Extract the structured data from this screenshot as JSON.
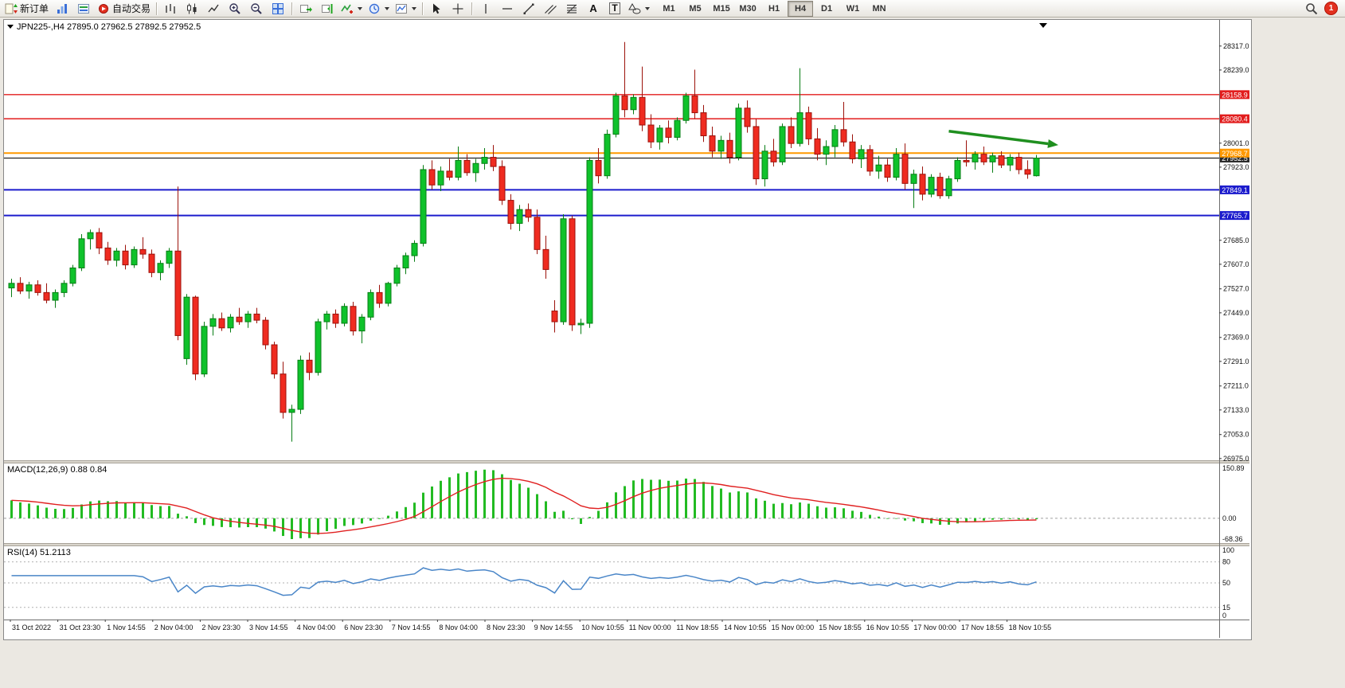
{
  "toolbar": {
    "new_order_label": "新订单",
    "auto_trading_label": "自动交易",
    "text_tool_label": "A",
    "label_tool_label": "T",
    "timeframes": [
      "M1",
      "M5",
      "M15",
      "M30",
      "H1",
      "H4",
      "D1",
      "W1",
      "MN"
    ],
    "active_timeframe": "H4",
    "notification_count": "1"
  },
  "chart_data": {
    "type": "candlestick",
    "symbol": "JPN225-",
    "period": "H4",
    "title": "JPN225-,H4",
    "ohlc_text": "27895.0 27962.5 27892.5 27952.5",
    "open": 27895.0,
    "high": 27962.5,
    "low": 27892.5,
    "close": 27952.5,
    "up_color": "#0fc22b",
    "up_edge": "#077d14",
    "down_color": "#ef2b20",
    "down_edge": "#9c120b",
    "price_axis_labels": [
      28317.0,
      28239.0,
      28001.0,
      27923.0,
      27685.0,
      27607.0,
      27527.0,
      27449.0,
      27369.0,
      27291.0,
      27211.0,
      27133.0,
      27053.0,
      26975.0
    ],
    "h_lines": [
      {
        "price": 28158.9,
        "color": "#e21d1d",
        "label": "28158.9",
        "width": 1.4
      },
      {
        "price": 28080.4,
        "color": "#e21d1d",
        "label": "28080.4",
        "width": 1.4
      },
      {
        "price": 27952.5,
        "color": "#000000",
        "label": "27952.5",
        "width": 1
      },
      {
        "price": 27968.7,
        "color": "#ff9900",
        "label": "27968.7",
        "width": 2
      },
      {
        "price": 27849.1,
        "color": "#1c1ccd",
        "label": "27849.1",
        "width": 2
      },
      {
        "price": 27765.7,
        "color": "#1c1ccd",
        "label": "27765.7",
        "width": 2
      }
    ],
    "trend_arrow": {
      "from_index": 107,
      "from_price": 28040,
      "to_index": 119.5,
      "to_price": 27995,
      "color": "#1f8f1f"
    },
    "candles": [
      [
        27530,
        27560,
        27500,
        27545
      ],
      [
        27545,
        27565,
        27510,
        27520
      ],
      [
        27520,
        27550,
        27495,
        27540
      ],
      [
        27540,
        27555,
        27505,
        27515
      ],
      [
        27515,
        27545,
        27480,
        27490
      ],
      [
        27490,
        27525,
        27465,
        27515
      ],
      [
        27515,
        27555,
        27500,
        27545
      ],
      [
        27545,
        27605,
        27535,
        27595
      ],
      [
        27595,
        27705,
        27585,
        27690
      ],
      [
        27690,
        27720,
        27655,
        27710
      ],
      [
        27710,
        27725,
        27640,
        27660
      ],
      [
        27660,
        27680,
        27605,
        27620
      ],
      [
        27620,
        27660,
        27600,
        27650
      ],
      [
        27650,
        27670,
        27590,
        27605
      ],
      [
        27605,
        27665,
        27595,
        27655
      ],
      [
        27655,
        27695,
        27625,
        27640
      ],
      [
        27640,
        27655,
        27565,
        27580
      ],
      [
        27580,
        27620,
        27555,
        27610
      ],
      [
        27610,
        27660,
        27595,
        27650
      ],
      [
        27650,
        27860,
        27360,
        27375
      ],
      [
        27300,
        27510,
        27280,
        27500
      ],
      [
        27500,
        27505,
        27230,
        27250
      ],
      [
        27250,
        27420,
        27240,
        27405
      ],
      [
        27405,
        27445,
        27375,
        27430
      ],
      [
        27430,
        27450,
        27390,
        27400
      ],
      [
        27400,
        27445,
        27385,
        27435
      ],
      [
        27435,
        27465,
        27410,
        27420
      ],
      [
        27420,
        27455,
        27400,
        27445
      ],
      [
        27445,
        27465,
        27415,
        27425
      ],
      [
        27425,
        27435,
        27330,
        27345
      ],
      [
        27345,
        27355,
        27235,
        27250
      ],
      [
        27250,
        27290,
        27105,
        27125
      ],
      [
        27125,
        27150,
        27030,
        27135
      ],
      [
        27135,
        27310,
        27120,
        27295
      ],
      [
        27295,
        27320,
        27230,
        27255
      ],
      [
        27255,
        27430,
        27245,
        27420
      ],
      [
        27420,
        27455,
        27395,
        27445
      ],
      [
        27445,
        27460,
        27400,
        27415
      ],
      [
        27415,
        27480,
        27405,
        27470
      ],
      [
        27470,
        27485,
        27375,
        27390
      ],
      [
        27390,
        27445,
        27350,
        27435
      ],
      [
        27435,
        27525,
        27425,
        27515
      ],
      [
        27515,
        27540,
        27465,
        27480
      ],
      [
        27480,
        27550,
        27470,
        27545
      ],
      [
        27545,
        27605,
        27535,
        27595
      ],
      [
        27595,
        27645,
        27575,
        27635
      ],
      [
        27635,
        27685,
        27615,
        27675
      ],
      [
        27675,
        27930,
        27665,
        27915
      ],
      [
        27915,
        27945,
        27850,
        27865
      ],
      [
        27865,
        27925,
        27845,
        27910
      ],
      [
        27910,
        27950,
        27880,
        27890
      ],
      [
        27890,
        27990,
        27880,
        27945
      ],
      [
        27945,
        27965,
        27895,
        27905
      ],
      [
        27905,
        27950,
        27875,
        27935
      ],
      [
        27935,
        27985,
        27915,
        27955
      ],
      [
        27955,
        27995,
        27910,
        27925
      ],
      [
        27925,
        27945,
        27800,
        27815
      ],
      [
        27815,
        27835,
        27720,
        27740
      ],
      [
        27740,
        27800,
        27715,
        27785
      ],
      [
        27785,
        27805,
        27745,
        27760
      ],
      [
        27760,
        27785,
        27640,
        27655
      ],
      [
        27655,
        27700,
        27560,
        27590
      ],
      [
        27455,
        27490,
        27385,
        27420
      ],
      [
        27420,
        27770,
        27410,
        27755
      ],
      [
        27755,
        27765,
        27390,
        27410
      ],
      [
        27410,
        27430,
        27380,
        27415
      ],
      [
        27415,
        27955,
        27400,
        27945
      ],
      [
        27945,
        27985,
        27870,
        27895
      ],
      [
        27895,
        28045,
        27885,
        28030
      ],
      [
        28030,
        28165,
        28020,
        28155
      ],
      [
        28155,
        28330,
        28085,
        28110
      ],
      [
        28110,
        28160,
        28095,
        28150
      ],
      [
        28150,
        28250,
        28040,
        28060
      ],
      [
        28060,
        28095,
        27985,
        28005
      ],
      [
        28005,
        28060,
        27980,
        28050
      ],
      [
        28050,
        28075,
        28000,
        28020
      ],
      [
        28020,
        28085,
        28010,
        28075
      ],
      [
        28075,
        28165,
        28065,
        28155
      ],
      [
        28155,
        28240,
        28080,
        28100
      ],
      [
        28100,
        28125,
        28005,
        28025
      ],
      [
        28025,
        28055,
        27955,
        27975
      ],
      [
        27975,
        28025,
        27950,
        28010
      ],
      [
        28010,
        28035,
        27935,
        27955
      ],
      [
        27955,
        28130,
        27945,
        28115
      ],
      [
        28115,
        28140,
        28035,
        28055
      ],
      [
        28055,
        28080,
        27865,
        27885
      ],
      [
        27885,
        27995,
        27860,
        27975
      ],
      [
        27975,
        28015,
        27925,
        27940
      ],
      [
        27940,
        28065,
        27930,
        28055
      ],
      [
        28055,
        28085,
        27985,
        28000
      ],
      [
        28000,
        28245,
        27990,
        28100
      ],
      [
        28100,
        28120,
        27995,
        28015
      ],
      [
        28015,
        28050,
        27945,
        27965
      ],
      [
        27965,
        28010,
        27930,
        27990
      ],
      [
        27990,
        28060,
        27955,
        28045
      ],
      [
        28045,
        28135,
        27990,
        28005
      ],
      [
        28005,
        28030,
        27935,
        27950
      ],
      [
        27950,
        27995,
        27920,
        27980
      ],
      [
        27980,
        27995,
        27895,
        27910
      ],
      [
        27910,
        27960,
        27885,
        27930
      ],
      [
        27930,
        27950,
        27875,
        27890
      ],
      [
        27890,
        27985,
        27880,
        27965
      ],
      [
        27965,
        28000,
        27850,
        27870
      ],
      [
        27870,
        27915,
        27790,
        27900
      ],
      [
        27900,
        27925,
        27815,
        27835
      ],
      [
        27835,
        27900,
        27825,
        27890
      ],
      [
        27890,
        27905,
        27820,
        27830
      ],
      [
        27830,
        27895,
        27820,
        27885
      ],
      [
        27885,
        27955,
        27875,
        27945
      ],
      [
        27945,
        28010,
        27925,
        27940
      ],
      [
        27940,
        27975,
        27915,
        27965
      ],
      [
        27965,
        27990,
        27930,
        27940
      ],
      [
        27940,
        27970,
        27905,
        27960
      ],
      [
        27960,
        27975,
        27920,
        27930
      ],
      [
        27930,
        27965,
        27910,
        27955
      ],
      [
        27955,
        27970,
        27900,
        27915
      ],
      [
        27915,
        27945,
        27885,
        27900
      ],
      [
        27895,
        27962.5,
        27892.5,
        27952.5
      ]
    ],
    "time_labels": [
      "31 Oct 2022",
      "31 Oct 23:30",
      "1 Nov 14:55",
      "2 Nov 04:00",
      "2 Nov 23:30",
      "3 Nov 14:55",
      "4 Nov 04:00",
      "6 Nov 23:30",
      "7 Nov 14:55",
      "8 Nov 04:00",
      "8 Nov 23:30",
      "9 Nov 14:55",
      "10 Nov 10:55",
      "11 Nov 00:00",
      "11 Nov 18:55",
      "14 Nov 10:55",
      "15 Nov 00:00",
      "15 Nov 18:55",
      "16 Nov 10:55",
      "17 Nov 00:00",
      "17 Nov 18:55",
      "18 Nov 10:55"
    ],
    "macd": {
      "label": "MACD(12,26,9)",
      "values_text": "0.88 0.84",
      "axis": [
        "150.89",
        "0.00",
        "-68.36"
      ],
      "histogram_color": "#22bb22",
      "signal_color": "#e02020"
    },
    "rsi": {
      "label": "RSI(14)",
      "value_text": "51.2113",
      "axis": [
        "100",
        "80",
        "50",
        "15",
        "0"
      ],
      "levels": [
        80,
        50,
        15
      ],
      "line_color": "#4a86c8"
    }
  }
}
